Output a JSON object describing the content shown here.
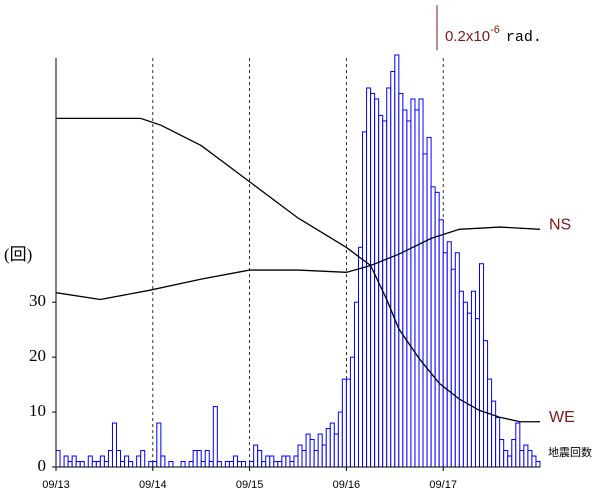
{
  "chart_data": {
    "type": "histogram",
    "y_label": "(回)",
    "count_label": "地震回数",
    "bins": [
      0,
      1,
      2,
      3,
      4,
      5,
      6,
      7,
      8,
      9,
      10,
      11,
      12,
      13,
      14,
      15,
      16,
      17,
      18,
      19,
      20,
      21,
      22,
      23,
      24,
      25,
      26,
      27,
      28,
      29,
      30,
      31,
      32,
      33,
      34,
      35,
      36,
      37,
      38,
      39,
      40,
      41,
      42,
      43,
      44,
      45,
      46,
      47,
      48,
      49,
      50,
      51,
      52,
      53,
      54,
      55,
      56,
      57,
      58,
      59,
      60,
      61,
      62,
      63,
      64,
      65,
      66,
      67,
      68,
      69,
      70,
      71,
      72,
      73,
      74,
      75,
      76,
      77,
      78,
      79,
      80,
      81,
      82,
      83,
      84,
      85,
      86,
      87,
      88,
      89,
      90,
      91,
      92,
      93,
      94,
      95,
      96,
      97,
      98,
      99,
      100,
      101,
      102,
      103,
      104,
      105,
      106,
      107,
      108,
      109,
      110,
      111,
      112,
      113,
      114,
      115,
      116,
      117,
      118,
      119,
      120
    ],
    "counts": [
      3,
      0,
      2,
      1,
      2,
      1,
      1,
      0,
      2,
      1,
      1,
      2,
      1,
      3,
      8,
      3,
      1,
      2,
      1,
      0,
      2,
      3,
      0,
      1,
      1,
      8,
      2,
      0,
      1,
      0,
      0,
      1,
      0,
      1,
      3,
      3,
      1,
      3,
      1,
      11,
      1,
      0,
      1,
      1,
      2,
      1,
      1,
      0,
      1,
      4,
      3,
      1,
      2,
      2,
      1,
      1,
      2,
      2,
      1,
      2,
      4,
      3,
      6,
      5,
      3,
      6,
      4,
      7,
      8,
      6,
      10,
      16,
      16,
      20,
      30,
      40,
      61,
      69,
      68,
      67,
      64,
      63,
      69,
      72,
      75,
      68,
      65,
      63,
      67,
      65,
      67,
      57,
      60,
      51,
      50,
      45,
      39,
      41,
      36,
      39,
      32,
      30,
      28,
      32,
      27,
      37,
      23,
      16,
      12,
      9,
      5,
      3,
      2,
      5,
      8,
      3,
      4,
      3,
      2,
      1
    ],
    "color": "#0000ff",
    "xlim": [
      0,
      120
    ],
    "xticks": [
      {
        "value": 0,
        "label": "09/13"
      },
      {
        "value": 24,
        "label": "09/14"
      },
      {
        "value": 48,
        "label": "09/15"
      },
      {
        "value": 72,
        "label": "09/16"
      },
      {
        "value": 96,
        "label": "09/17"
      }
    ],
    "ylim": [
      0,
      75
    ],
    "yticks": [
      0,
      10,
      20,
      30
    ],
    "y2lim": [
      0,
      1.82
    ],
    "grid": true,
    "series": [
      {
        "name": "NS",
        "color": "#000000",
        "label_color": "#7a1a1a",
        "axis": "y2",
        "x": [
          0,
          11,
          23,
          36,
          48,
          60,
          72,
          78,
          85,
          93,
          100,
          110,
          120
        ],
        "values": [
          0.77,
          0.74,
          0.78,
          0.83,
          0.87,
          0.87,
          0.86,
          0.89,
          0.94,
          1.01,
          1.05,
          1.06,
          1.05
        ]
      },
      {
        "name": "WE",
        "color": "#000000",
        "label_color": "#7a1a1a",
        "axis": "y2",
        "x": [
          0,
          11,
          21,
          26,
          36,
          48,
          60,
          72,
          78,
          82,
          85,
          90,
          95,
          100,
          105,
          110,
          115,
          120
        ],
        "values": [
          1.54,
          1.54,
          1.54,
          1.51,
          1.42,
          1.26,
          1.1,
          0.97,
          0.89,
          0.74,
          0.61,
          0.48,
          0.37,
          0.3,
          0.25,
          0.22,
          0.2,
          0.2
        ]
      }
    ],
    "scale_bar": {
      "value": 0.2,
      "label": "0.2x10",
      "exponent": "-6",
      "unit": "rad."
    }
  }
}
